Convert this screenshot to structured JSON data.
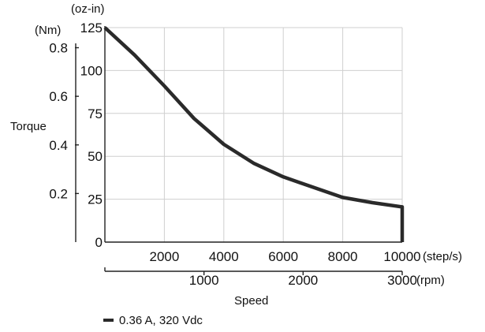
{
  "chart_data": {
    "type": "line",
    "ylabel": "Torque",
    "xlabel": "Speed",
    "primary_y": {
      "unit": "(oz-in)",
      "ticks": [
        0,
        25,
        50,
        75,
        100,
        125
      ],
      "range": [
        0,
        125
      ]
    },
    "secondary_y": {
      "unit": "(Nm)",
      "ticks": [
        0.2,
        0.4,
        0.6,
        0.8
      ]
    },
    "primary_x": {
      "unit": "(step/s)",
      "ticks": [
        2000,
        4000,
        6000,
        8000,
        10000
      ],
      "range": [
        0,
        10000
      ]
    },
    "secondary_x": {
      "unit": "(rpm)",
      "ticks": [
        1000,
        2000,
        3000
      ]
    },
    "grid": true,
    "legend_position": "bottom-left",
    "series": [
      {
        "name": "0.36 A, 320 Vdc",
        "x": [
          0,
          1000,
          2000,
          3000,
          4000,
          5000,
          6000,
          7000,
          8000,
          9000,
          10000,
          10000
        ],
        "y": [
          125,
          109,
          91,
          72,
          57,
          46,
          38,
          32,
          26,
          23,
          20.5,
          0
        ]
      }
    ]
  }
}
